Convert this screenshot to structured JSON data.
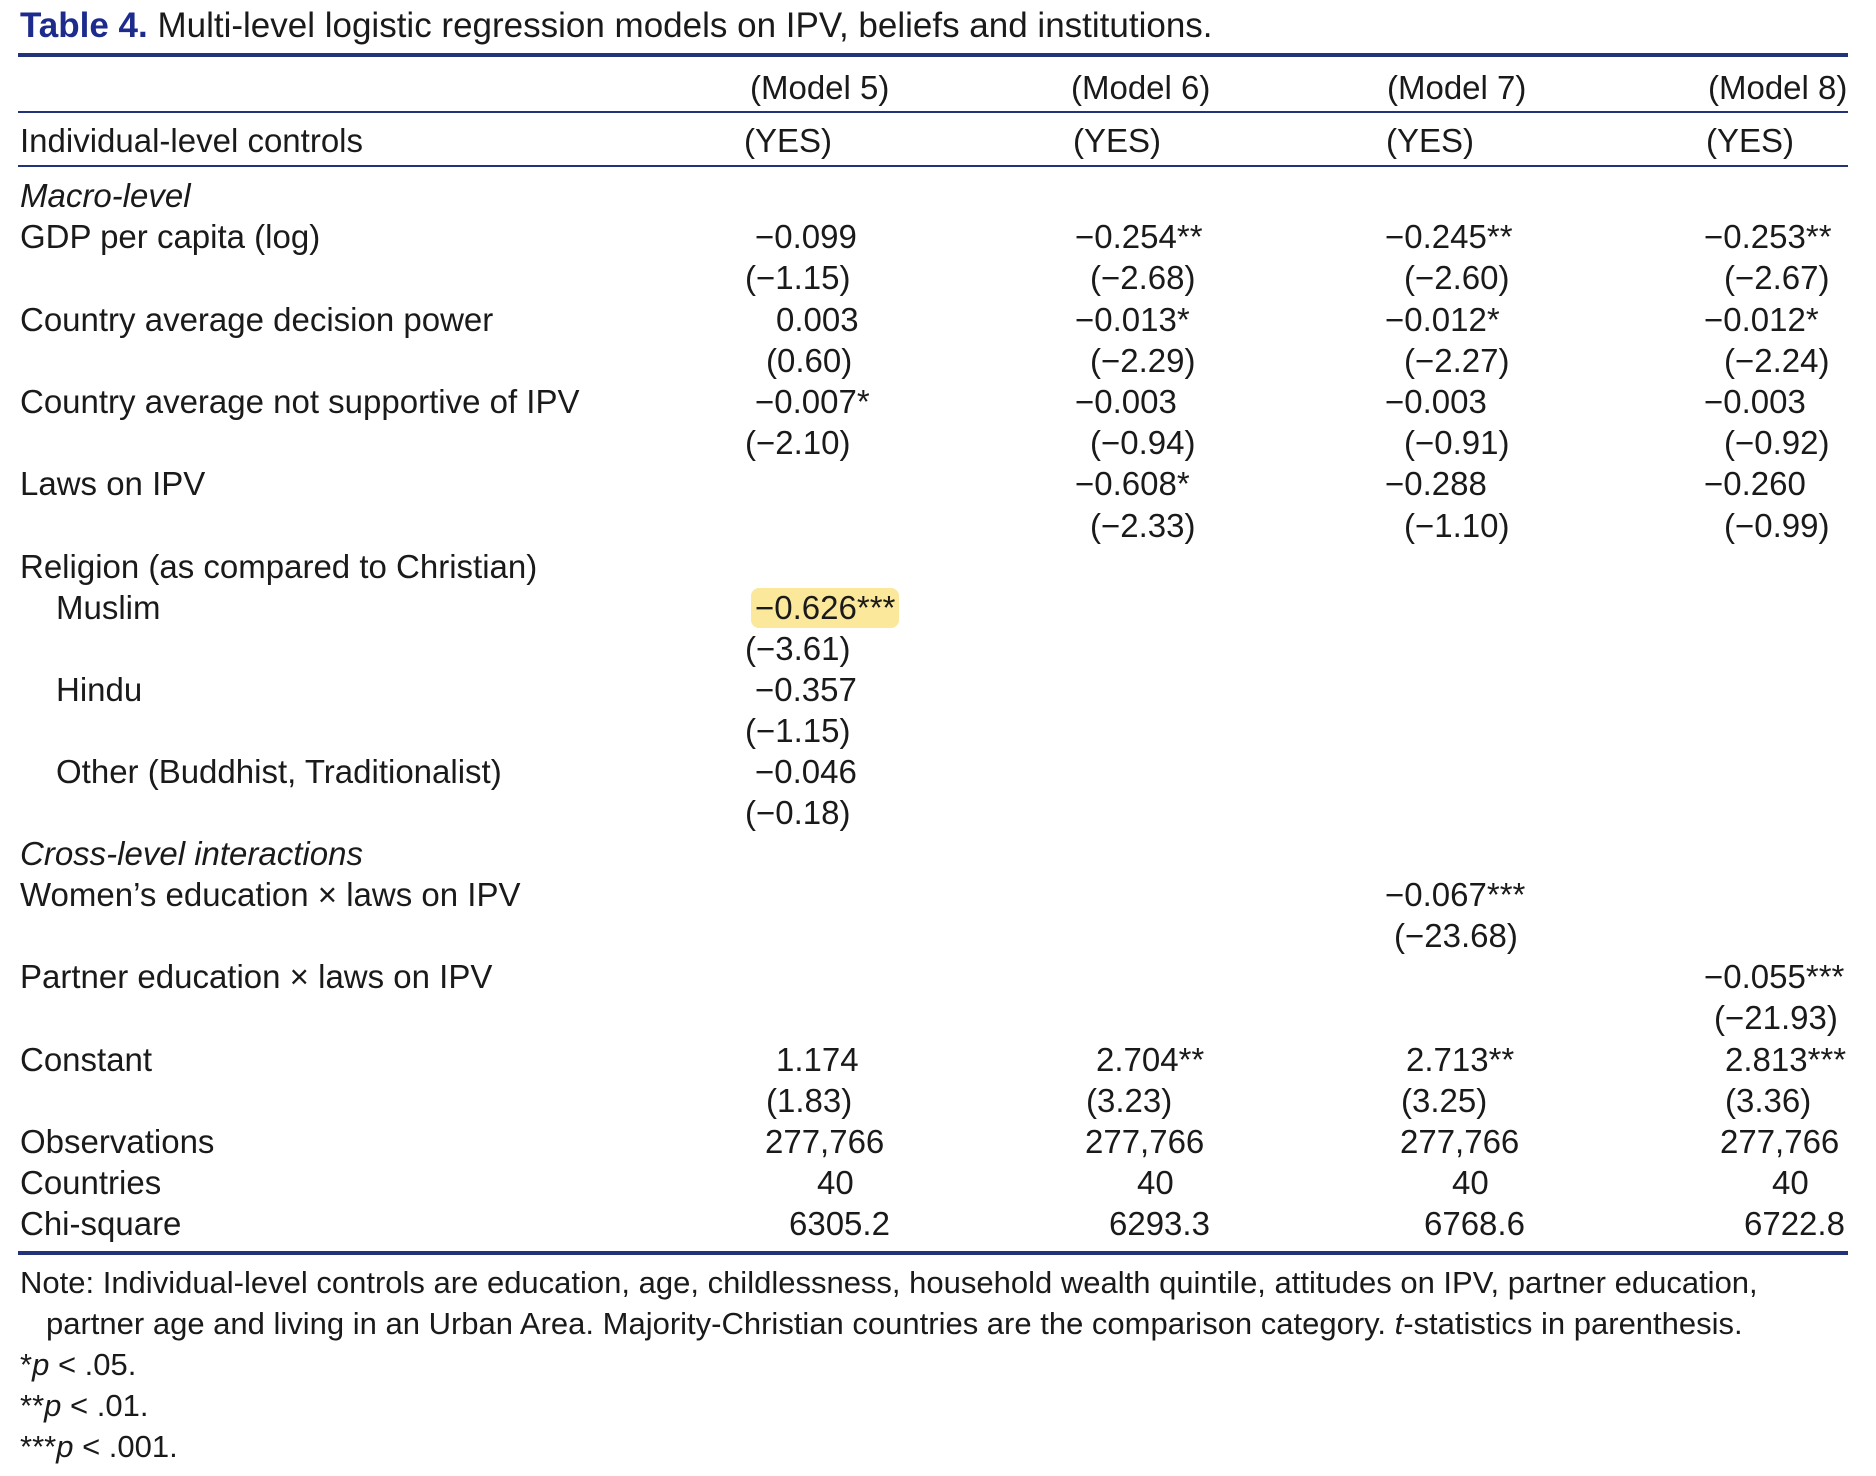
{
  "title": {
    "label": "Table 4.",
    "caption": " Multi-level logistic regression models on IPV, beliefs and institutions."
  },
  "header": {
    "models": [
      "(Model 5)",
      "(Model 6)",
      "(Model 7)",
      "(Model 8)"
    ],
    "controls_label": "Individual-level controls",
    "controls": [
      "(YES)",
      "(YES)",
      "(YES)",
      "(YES)"
    ]
  },
  "sections": {
    "macro": "Macro-level",
    "cross": "Cross-level interactions"
  },
  "rows": {
    "gdp": {
      "label": "GDP per capita (log)",
      "coef": [
        "−0.099",
        "−0.254**",
        "−0.245**",
        "−0.253**"
      ],
      "t": [
        "(−1.15)",
        "(−2.68)",
        "(−2.60)",
        "(−2.67)"
      ]
    },
    "decision": {
      "label": "Country average decision power",
      "coef": [
        "0.003",
        "−0.013*",
        "−0.012*",
        "−0.012*"
      ],
      "t": [
        "(0.60)",
        "(−2.29)",
        "(−2.27)",
        "(−2.24)"
      ]
    },
    "notsupport": {
      "label": "Country average not supportive of IPV",
      "coef": [
        "−0.007*",
        "−0.003",
        "−0.003",
        "−0.003"
      ],
      "t": [
        "(−2.10)",
        "(−0.94)",
        "(−0.91)",
        "(−0.92)"
      ]
    },
    "laws": {
      "label": "Laws on IPV",
      "coef": [
        "",
        "−0.608*",
        "−0.288",
        "−0.260"
      ],
      "t": [
        "",
        "(−2.33)",
        "(−1.10)",
        "(−0.99)"
      ]
    },
    "religion": {
      "label": "Religion (as compared to Christian)"
    },
    "muslim": {
      "label": "Muslim",
      "coef": [
        "−0.626***",
        "",
        "",
        ""
      ],
      "t": [
        "(−3.61)",
        "",
        "",
        ""
      ]
    },
    "hindu": {
      "label": "Hindu",
      "coef": [
        "−0.357",
        "",
        "",
        ""
      ],
      "t": [
        "(−1.15)",
        "",
        "",
        ""
      ]
    },
    "other": {
      "label": "Other (Buddhist, Traditionalist)",
      "coef": [
        "−0.046",
        "",
        "",
        ""
      ],
      "t": [
        "(−0.18)",
        "",
        "",
        ""
      ]
    },
    "women_edu": {
      "label": "Women’s education × laws on IPV",
      "coef": [
        "",
        "",
        "−0.067***",
        ""
      ],
      "t": [
        "",
        "",
        "(−23.68)",
        ""
      ]
    },
    "partner_edu": {
      "label": "Partner education × laws on IPV",
      "coef": [
        "",
        "",
        "",
        "−0.055***"
      ],
      "t": [
        "",
        "",
        "",
        "(−21.93)"
      ]
    },
    "constant": {
      "label": "Constant",
      "coef": [
        "1.174",
        "2.704**",
        "2.713**",
        "2.813***"
      ],
      "t": [
        "(1.83)",
        "(3.23)",
        "(3.25)",
        "(3.36)"
      ]
    },
    "obs": {
      "label": "Observations",
      "vals": [
        "277,766",
        "277,766",
        "277,766",
        "277,766"
      ]
    },
    "countries": {
      "label": "Countries",
      "vals": [
        "40",
        "40",
        "40",
        "40"
      ]
    },
    "chisq": {
      "label": "Chi-square",
      "vals": [
        "6305.2",
        "6293.3",
        "6768.6",
        "6722.8"
      ]
    }
  },
  "note": {
    "line1": "Note: Individual-level controls are education, age, childlessness, household wealth quintile, attitudes on IPV, partner education,",
    "line2a": "partner age and living in an Urban Area. Majority-Christian countries are the comparison category. ",
    "line2t": "t",
    "line2b": "-statistics in parenthesis.",
    "sig1_stars": "*",
    "sig1_p": "p",
    "sig1_rest": " < .05.",
    "sig2_stars": "**",
    "sig2_p": "p",
    "sig2_rest": " < .01.",
    "sig3_stars": "***",
    "sig3_p": "p",
    "sig3_rest": " < .001."
  },
  "highlight_color": "#fbe89a"
}
